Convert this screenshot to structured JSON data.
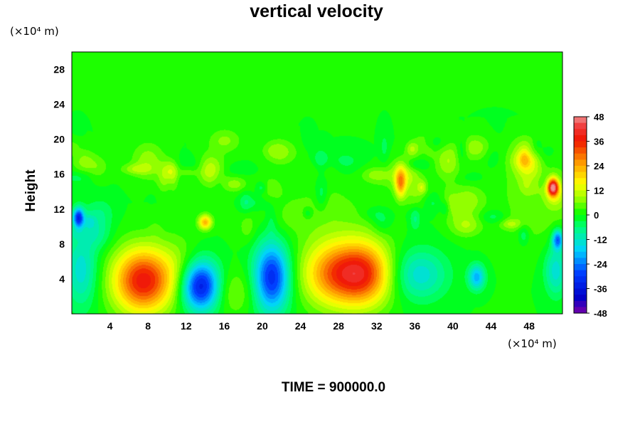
{
  "chart_data": {
    "type": "heatmap",
    "title": "vertical velocity",
    "ylabel": "Height",
    "xunit": "(×10⁴ m)",
    "yunit": "(×10⁴ m)",
    "annotation": "TIME = 900000.0",
    "xlim": [
      0,
      51.5
    ],
    "ylim": [
      0,
      30
    ],
    "xticks": [
      4,
      8,
      12,
      16,
      20,
      24,
      28,
      32,
      36,
      40,
      44,
      48
    ],
    "yticks": [
      4,
      8,
      12,
      16,
      20,
      24,
      28
    ],
    "colorbar": {
      "range": [
        -48,
        48
      ],
      "ticks": [
        48,
        36,
        24,
        12,
        0,
        -12,
        -24,
        -36,
        -48
      ],
      "low_color": "#7a00a8",
      "mid_color": "#00ff00",
      "high_color": "#f08080"
    },
    "features": [
      {
        "x": 7.5,
        "y": 3.8,
        "sx": 2.2,
        "sy": 2.6,
        "value": 38
      },
      {
        "x": 13.5,
        "y": 3.2,
        "sx": 1.4,
        "sy": 2.0,
        "value": -36
      },
      {
        "x": 21.0,
        "y": 4.2,
        "sx": 1.3,
        "sy": 2.8,
        "value": -32
      },
      {
        "x": 27.5,
        "y": 4.6,
        "sx": 2.3,
        "sy": 2.6,
        "value": 27
      },
      {
        "x": 30.8,
        "y": 4.6,
        "sx": 2.0,
        "sy": 2.6,
        "value": 29
      },
      {
        "x": 36.5,
        "y": 4.5,
        "sx": 2.0,
        "sy": 2.0,
        "value": -14
      },
      {
        "x": 1.0,
        "y": 5.0,
        "sx": 1.2,
        "sy": 3.0,
        "value": -14
      },
      {
        "x": 42.5,
        "y": 4.2,
        "sx": 0.6,
        "sy": 1.0,
        "value": -20
      },
      {
        "x": 50.8,
        "y": 5.0,
        "sx": 0.8,
        "sy": 2.0,
        "value": -14
      },
      {
        "x": 17.0,
        "y": 2.5,
        "sx": 1.5,
        "sy": 1.8,
        "value": 7
      },
      {
        "x": 11.5,
        "y": 5.5,
        "sx": 1.5,
        "sy": 2.5,
        "value": 5
      },
      {
        "x": 25.5,
        "y": 11.5,
        "sx": 4.5,
        "sy": 2.5,
        "value": 4
      },
      {
        "x": 34.5,
        "y": 15.0,
        "sx": 0.4,
        "sy": 1.2,
        "value": 22
      },
      {
        "x": 50.5,
        "y": 14.5,
        "sx": 0.4,
        "sy": 0.7,
        "value": 44
      },
      {
        "x": 48.5,
        "y": 16.5,
        "sx": 1.5,
        "sy": 1.5,
        "value": 10
      },
      {
        "x": 14.5,
        "y": 16.5,
        "sx": 1.0,
        "sy": 1.2,
        "value": 12
      },
      {
        "x": 48.5,
        "y": 12.0,
        "sx": 3.0,
        "sy": 3.0,
        "value": 5
      },
      {
        "x": 39.5,
        "y": 17.5,
        "sx": 1.0,
        "sy": 1.5,
        "value": 9
      },
      {
        "x": 14.0,
        "y": 10.5,
        "sx": 0.5,
        "sy": 0.6,
        "value": 22
      },
      {
        "x": 0.7,
        "y": 11.0,
        "sx": 0.4,
        "sy": 0.8,
        "value": -30
      },
      {
        "x": 51.0,
        "y": 8.5,
        "sx": 0.4,
        "sy": 0.8,
        "value": -26
      },
      {
        "x": 41.5,
        "y": 13.0,
        "sx": 1.2,
        "sy": 1.2,
        "value": 8
      },
      {
        "x": 8.0,
        "y": 17.5,
        "sx": 1.2,
        "sy": 1.5,
        "value": 8
      }
    ]
  }
}
